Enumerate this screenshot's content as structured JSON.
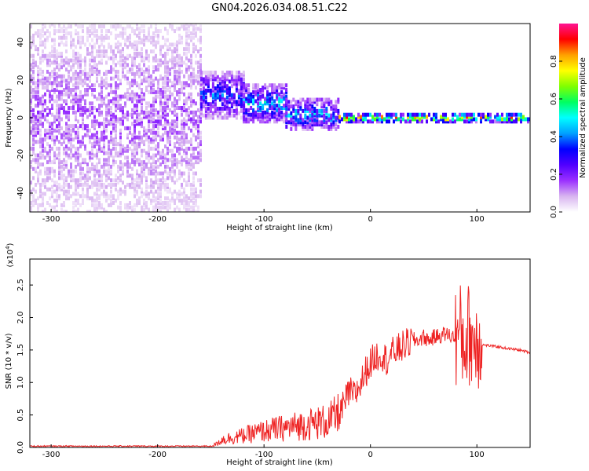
{
  "chart_data": [
    {
      "type": "heatmap",
      "title": "GN04.2026.034.08.51.C22",
      "xlabel": "Height of straight line (km)",
      "ylabel": "Frequency (Hz)",
      "xlim": [
        -320,
        150
      ],
      "ylim": [
        -50,
        50
      ],
      "xticks": [
        -300,
        -200,
        -100,
        0,
        100
      ],
      "yticks": [
        -40,
        -20,
        0,
        20,
        40
      ],
      "colorbar": {
        "label": "Normalized spectral amplitude",
        "range": [
          0.0,
          1.0
        ],
        "ticks": [
          0.0,
          0.2,
          0.4,
          0.6,
          0.8
        ],
        "tick_labels": [
          "0.0",
          "0.2",
          "0.4",
          "0.6",
          "0.8"
        ],
        "colormap": [
          "#ffffff",
          "#d8b4f0",
          "#9b30ff",
          "#5000ff",
          "#0000ff",
          "#00a0ff",
          "#00ffff",
          "#00ff60",
          "#80ff00",
          "#ffff00",
          "#ffa000",
          "#ff0000",
          "#ff1493"
        ]
      },
      "regions": [
        {
          "x_range": [
            -320,
            -160
          ],
          "center_hz": 0,
          "spread_hz": 50,
          "amplitude": 0.15,
          "description_type": "broadband noise"
        },
        {
          "x_range": [
            -160,
            -120
          ],
          "center_hz": 12,
          "spread_hz": 12,
          "amplitude": 0.35
        },
        {
          "x_range": [
            -120,
            -80
          ],
          "center_hz": 8,
          "spread_hz": 10,
          "amplitude": 0.45
        },
        {
          "x_range": [
            -80,
            -30
          ],
          "center_hz": 2,
          "spread_hz": 8,
          "amplitude": 0.45
        },
        {
          "x_range": [
            -30,
            150
          ],
          "center_hz": 0,
          "spread_hz": 2,
          "amplitude": 0.85
        }
      ]
    },
    {
      "type": "line",
      "xlabel": "Height of straight line (km)",
      "ylabel": "SNR (10 * v/v)",
      "y_scale_label": "(x10^4)",
      "xlim": [
        -320,
        150
      ],
      "ylim": [
        0,
        2.9
      ],
      "xticks": [
        -300,
        -200,
        -100,
        0,
        100
      ],
      "yticks": [
        0.0,
        0.5,
        1.0,
        1.5,
        2.0,
        2.5
      ],
      "ytick_labels": [
        "0.0",
        "0.5",
        "1.0",
        "1.5",
        "2.0",
        "2.5"
      ],
      "color": "#ee2222",
      "series": [
        {
          "x": [
            -320,
            -250,
            -200,
            -150,
            -145,
            -140,
            -130,
            -120,
            -110,
            -100,
            -90,
            -80,
            -70,
            -60,
            -50,
            -40,
            -35,
            -30,
            -25,
            -20,
            -15,
            -10,
            -5,
            0,
            5,
            10,
            15,
            20,
            25,
            30,
            35,
            40,
            45,
            50,
            55,
            60,
            65,
            70,
            75,
            80,
            85,
            88,
            90,
            92,
            95,
            98,
            100,
            103,
            105,
            110,
            120,
            130,
            140,
            150
          ],
          "y": [
            0.02,
            0.02,
            0.02,
            0.02,
            0.05,
            0.12,
            0.15,
            0.18,
            0.22,
            0.25,
            0.28,
            0.3,
            0.33,
            0.35,
            0.38,
            0.4,
            0.45,
            0.5,
            0.65,
            0.85,
            0.8,
            0.95,
            1.15,
            1.3,
            1.4,
            1.45,
            1.35,
            1.45,
            1.5,
            1.55,
            1.6,
            1.65,
            1.65,
            1.7,
            1.65,
            1.7,
            1.72,
            1.75,
            1.72,
            1.7,
            1.75,
            1.6,
            1.7,
            1.75,
            1.7,
            1.6,
            1.7,
            1.65,
            1.58,
            1.57,
            1.55,
            1.52,
            1.5,
            1.46
          ]
        }
      ]
    }
  ]
}
